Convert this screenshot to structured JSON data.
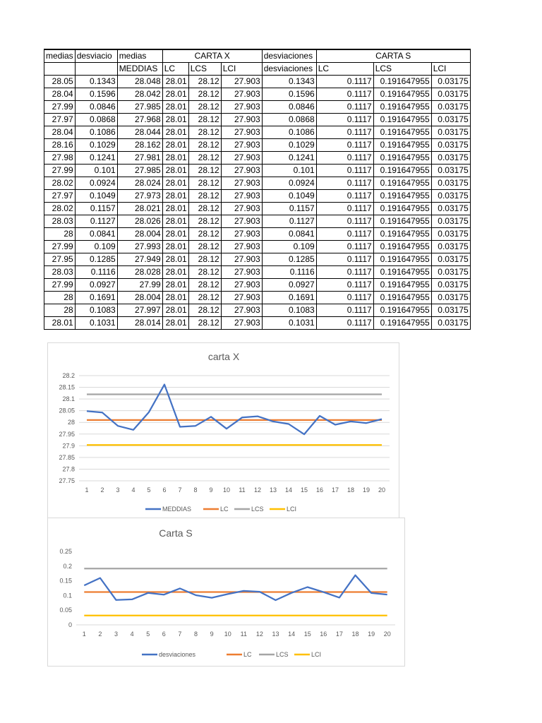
{
  "table": {
    "header1": [
      "medias",
      "desviacio",
      "medias",
      "CARTA X",
      "desviaciones",
      "CARTA S"
    ],
    "header2": [
      "",
      "",
      "MEDDIAS",
      "LC",
      "LCS",
      "LCI",
      "desviaciones",
      "LC",
      "LCS",
      "LCI"
    ],
    "rows": [
      [
        "28.05",
        "0.1343",
        "28.048",
        "28.01",
        "28.12",
        "27.903",
        "0.1343",
        "0.1117",
        "0.191647955",
        "0.03175"
      ],
      [
        "28.04",
        "0.1596",
        "28.042",
        "28.01",
        "28.12",
        "27.903",
        "0.1596",
        "0.1117",
        "0.191647955",
        "0.03175"
      ],
      [
        "27.99",
        "0.0846",
        "27.985",
        "28.01",
        "28.12",
        "27.903",
        "0.0846",
        "0.1117",
        "0.191647955",
        "0.03175"
      ],
      [
        "27.97",
        "0.0868",
        "27.968",
        "28.01",
        "28.12",
        "27.903",
        "0.0868",
        "0.1117",
        "0.191647955",
        "0.03175"
      ],
      [
        "28.04",
        "0.1086",
        "28.044",
        "28.01",
        "28.12",
        "27.903",
        "0.1086",
        "0.1117",
        "0.191647955",
        "0.03175"
      ],
      [
        "28.16",
        "0.1029",
        "28.162",
        "28.01",
        "28.12",
        "27.903",
        "0.1029",
        "0.1117",
        "0.191647955",
        "0.03175"
      ],
      [
        "27.98",
        "0.1241",
        "27.981",
        "28.01",
        "28.12",
        "27.903",
        "0.1241",
        "0.1117",
        "0.191647955",
        "0.03175"
      ],
      [
        "27.99",
        "0.101",
        "27.985",
        "28.01",
        "28.12",
        "27.903",
        "0.101",
        "0.1117",
        "0.191647955",
        "0.03175"
      ],
      [
        "28.02",
        "0.0924",
        "28.024",
        "28.01",
        "28.12",
        "27.903",
        "0.0924",
        "0.1117",
        "0.191647955",
        "0.03175"
      ],
      [
        "27.97",
        "0.1049",
        "27.973",
        "28.01",
        "28.12",
        "27.903",
        "0.1049",
        "0.1117",
        "0.191647955",
        "0.03175"
      ],
      [
        "28.02",
        "0.1157",
        "28.021",
        "28.01",
        "28.12",
        "27.903",
        "0.1157",
        "0.1117",
        "0.191647955",
        "0.03175"
      ],
      [
        "28.03",
        "0.1127",
        "28.026",
        "28.01",
        "28.12",
        "27.903",
        "0.1127",
        "0.1117",
        "0.191647955",
        "0.03175"
      ],
      [
        "28",
        "0.0841",
        "28.004",
        "28.01",
        "28.12",
        "27.903",
        "0.0841",
        "0.1117",
        "0.191647955",
        "0.03175"
      ],
      [
        "27.99",
        "0.109",
        "27.993",
        "28.01",
        "28.12",
        "27.903",
        "0.109",
        "0.1117",
        "0.191647955",
        "0.03175"
      ],
      [
        "27.95",
        "0.1285",
        "27.949",
        "28.01",
        "28.12",
        "27.903",
        "0.1285",
        "0.1117",
        "0.191647955",
        "0.03175"
      ],
      [
        "28.03",
        "0.1116",
        "28.028",
        "28.01",
        "28.12",
        "27.903",
        "0.1116",
        "0.1117",
        "0.191647955",
        "0.03175"
      ],
      [
        "27.99",
        "0.0927",
        "27.99",
        "28.01",
        "28.12",
        "27.903",
        "0.0927",
        "0.1117",
        "0.191647955",
        "0.03175"
      ],
      [
        "28",
        "0.1691",
        "28.004",
        "28.01",
        "28.12",
        "27.903",
        "0.1691",
        "0.1117",
        "0.191647955",
        "0.03175"
      ],
      [
        "28",
        "0.1083",
        "27.997",
        "28.01",
        "28.12",
        "27.903",
        "0.1083",
        "0.1117",
        "0.191647955",
        "0.03175"
      ],
      [
        "28.01",
        "0.1031",
        "28.014",
        "28.01",
        "28.12",
        "27.903",
        "0.1031",
        "0.1117",
        "0.191647955",
        "0.03175"
      ]
    ]
  },
  "chart_data": [
    {
      "type": "line",
      "title": "carta X",
      "x": [
        "1",
        "2",
        "3",
        "4",
        "5",
        "6",
        "7",
        "8",
        "9",
        "10",
        "11",
        "12",
        "13",
        "14",
        "15",
        "16",
        "17",
        "18",
        "19",
        "20"
      ],
      "ylim": [
        27.75,
        28.2
      ],
      "yticks": [
        "27.75",
        "27.8",
        "27.85",
        "27.9",
        "27.95",
        "28",
        "28.05",
        "28.1",
        "28.15",
        "28.2"
      ],
      "grid": true,
      "legend": "bottom",
      "series": [
        {
          "name": "MEDDIAS",
          "color": "#4472c4",
          "values": [
            28.048,
            28.042,
            27.985,
            27.968,
            28.044,
            28.162,
            27.981,
            27.985,
            28.024,
            27.973,
            28.021,
            28.026,
            28.004,
            27.993,
            27.949,
            28.028,
            27.99,
            28.004,
            27.997,
            28.014
          ]
        },
        {
          "name": "LC",
          "color": "#ed7d31",
          "values": [
            28.01,
            28.01,
            28.01,
            28.01,
            28.01,
            28.01,
            28.01,
            28.01,
            28.01,
            28.01,
            28.01,
            28.01,
            28.01,
            28.01,
            28.01,
            28.01,
            28.01,
            28.01,
            28.01,
            28.01
          ]
        },
        {
          "name": "LCS",
          "color": "#a5a5a5",
          "values": [
            28.12,
            28.12,
            28.12,
            28.12,
            28.12,
            28.12,
            28.12,
            28.12,
            28.12,
            28.12,
            28.12,
            28.12,
            28.12,
            28.12,
            28.12,
            28.12,
            28.12,
            28.12,
            28.12,
            28.12
          ]
        },
        {
          "name": "LCI",
          "color": "#ffc000",
          "values": [
            27.903,
            27.903,
            27.903,
            27.903,
            27.903,
            27.903,
            27.903,
            27.903,
            27.903,
            27.903,
            27.903,
            27.903,
            27.903,
            27.903,
            27.903,
            27.903,
            27.903,
            27.903,
            27.903,
            27.903
          ]
        }
      ]
    },
    {
      "type": "line",
      "title": "Carta S",
      "x": [
        "1",
        "2",
        "3",
        "4",
        "5",
        "6",
        "7",
        "8",
        "9",
        "10",
        "11",
        "12",
        "13",
        "14",
        "15",
        "16",
        "17",
        "18",
        "19",
        "20"
      ],
      "ylim": [
        0,
        0.25
      ],
      "yticks": [
        "0",
        "0.05",
        "0.1",
        "0.15",
        "0.2",
        "0.25"
      ],
      "grid": false,
      "legend": "bottom",
      "series": [
        {
          "name": "desviaciones",
          "color": "#4472c4",
          "values": [
            0.1343,
            0.1596,
            0.0846,
            0.0868,
            0.1086,
            0.1029,
            0.1241,
            0.101,
            0.0924,
            0.1049,
            0.1157,
            0.1127,
            0.0841,
            0.109,
            0.1285,
            0.1116,
            0.0927,
            0.1691,
            0.1083,
            0.1031
          ]
        },
        {
          "name": "LC",
          "color": "#ed7d31",
          "values": [
            0.1117,
            0.1117,
            0.1117,
            0.1117,
            0.1117,
            0.1117,
            0.1117,
            0.1117,
            0.1117,
            0.1117,
            0.1117,
            0.1117,
            0.1117,
            0.1117,
            0.1117,
            0.1117,
            0.1117,
            0.1117,
            0.1117,
            0.1117
          ]
        },
        {
          "name": "LCS",
          "color": "#a5a5a5",
          "values": [
            0.191647955,
            0.191647955,
            0.191647955,
            0.191647955,
            0.191647955,
            0.191647955,
            0.191647955,
            0.191647955,
            0.191647955,
            0.191647955,
            0.191647955,
            0.191647955,
            0.191647955,
            0.191647955,
            0.191647955,
            0.191647955,
            0.191647955,
            0.191647955,
            0.191647955,
            0.191647955
          ]
        },
        {
          "name": "LCI",
          "color": "#ffc000",
          "values": [
            0.03175,
            0.03175,
            0.03175,
            0.03175,
            0.03175,
            0.03175,
            0.03175,
            0.03175,
            0.03175,
            0.03175,
            0.03175,
            0.03175,
            0.03175,
            0.03175,
            0.03175,
            0.03175,
            0.03175,
            0.03175,
            0.03175,
            0.03175
          ]
        }
      ]
    }
  ]
}
